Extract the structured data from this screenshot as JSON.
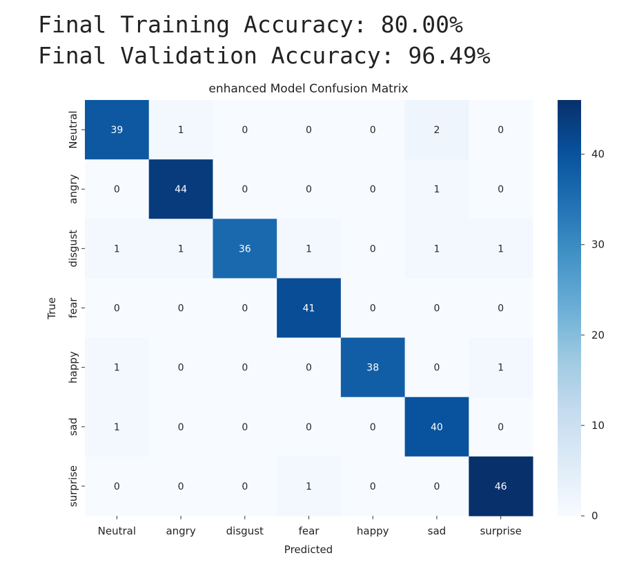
{
  "header": {
    "line1": "Final Training Accuracy: 80.00%",
    "line2": "Final Validation Accuracy: 96.49%"
  },
  "chart_data": {
    "type": "heatmap",
    "title": "enhanced Model Confusion Matrix",
    "xlabel": "Predicted",
    "ylabel": "True",
    "x_categories": [
      "Neutral",
      "angry",
      "disgust",
      "fear",
      "happy",
      "sad",
      "surprise"
    ],
    "y_categories": [
      "Neutral",
      "angry",
      "disgust",
      "fear",
      "happy",
      "sad",
      "surprise"
    ],
    "values": [
      [
        39,
        1,
        0,
        0,
        0,
        2,
        0
      ],
      [
        0,
        44,
        0,
        0,
        0,
        1,
        0
      ],
      [
        1,
        1,
        36,
        1,
        0,
        1,
        1
      ],
      [
        0,
        0,
        0,
        41,
        0,
        0,
        0
      ],
      [
        1,
        0,
        0,
        0,
        38,
        0,
        1
      ],
      [
        1,
        0,
        0,
        0,
        0,
        40,
        0
      ],
      [
        0,
        0,
        0,
        1,
        0,
        0,
        46
      ]
    ],
    "colormap": "Blues",
    "colorbar": {
      "range": [
        0,
        46
      ],
      "ticks": [
        0,
        10,
        20,
        30,
        40
      ]
    },
    "annotations": true
  }
}
